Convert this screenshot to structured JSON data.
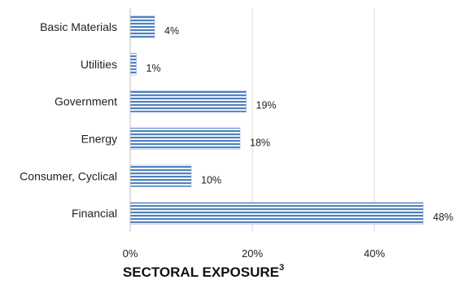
{
  "chart_data": {
    "type": "bar",
    "orientation": "horizontal",
    "categories": [
      "Basic Materials",
      "Utilities",
      "Government",
      "Energy",
      "Consumer, Cyclical",
      "Financial"
    ],
    "values": [
      4,
      1,
      19,
      18,
      10,
      48
    ],
    "data_labels": [
      "4%",
      "1%",
      "19%",
      "18%",
      "10%",
      "48%"
    ],
    "xlabel": "SECTORAL EXPOSURE",
    "xlabel_superscript": "3",
    "xlim": [
      0,
      50
    ],
    "x_ticks": [
      0,
      20,
      40
    ],
    "x_tick_labels": [
      "0%",
      "20%",
      "40%"
    ],
    "grid": true,
    "bar_color": "#4f81bd",
    "bar_fill": "horizontal-stripes"
  }
}
